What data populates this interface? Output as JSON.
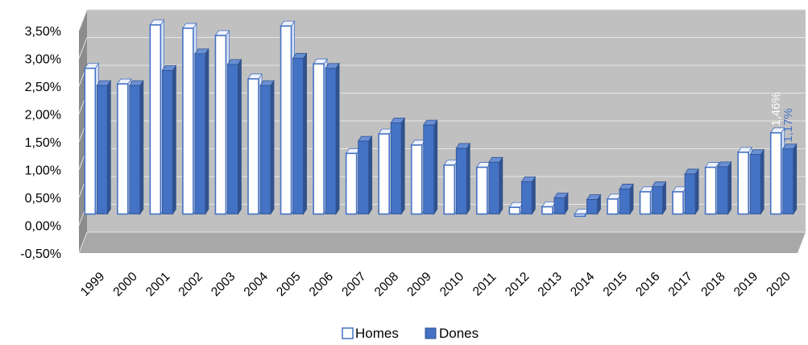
{
  "chart_data": {
    "type": "bar",
    "categories": [
      "1999",
      "2000",
      "2001",
      "2002",
      "2003",
      "2004",
      "2005",
      "2006",
      "2007",
      "2008",
      "2009",
      "2010",
      "2011",
      "2012",
      "2013",
      "2014",
      "2015",
      "2016",
      "2017",
      "2018",
      "2019",
      "2020"
    ],
    "series": [
      {
        "name": "Homes",
        "color": "#ffffff",
        "edge": "#4472c4",
        "values": [
          2.62,
          2.34,
          3.4,
          3.34,
          3.21,
          2.43,
          3.38,
          2.7,
          1.09,
          1.44,
          1.24,
          0.88,
          0.84,
          0.12,
          0.13,
          -0.04,
          0.27,
          0.4,
          0.4,
          0.84,
          1.11,
          1.46
        ]
      },
      {
        "name": "Dones",
        "color": "#4472c4",
        "edge": "#2f528f",
        "values": [
          2.31,
          2.31,
          2.58,
          2.88,
          2.69,
          2.31,
          2.8,
          2.62,
          1.31,
          1.64,
          1.6,
          1.18,
          0.93,
          0.58,
          0.29,
          0.26,
          0.45,
          0.49,
          0.72,
          0.85,
          1.07,
          1.17
        ]
      }
    ],
    "data_labels": [
      {
        "category": "2020",
        "series": "Homes",
        "text": "1,46%",
        "color": "#ffffff"
      },
      {
        "category": "2020",
        "series": "Dones",
        "text": "1,17%",
        "color": "#4472c4"
      }
    ],
    "y_ticks": [
      "-0,50%",
      "0,00%",
      "0,50%",
      "1,00%",
      "1,50%",
      "2,00%",
      "2,50%",
      "3,00%",
      "3,50%"
    ],
    "ylim": [
      -0.5,
      3.5
    ],
    "grid": true,
    "background": "#c0c0c0",
    "legend_position": "bottom",
    "title": "",
    "xlabel": "",
    "ylabel": ""
  },
  "legend": {
    "items": [
      {
        "label": "Homes",
        "color": "#ffffff",
        "edge": "#4472c4"
      },
      {
        "label": "Dones",
        "color": "#4472c4",
        "edge": "#2f528f"
      }
    ]
  }
}
